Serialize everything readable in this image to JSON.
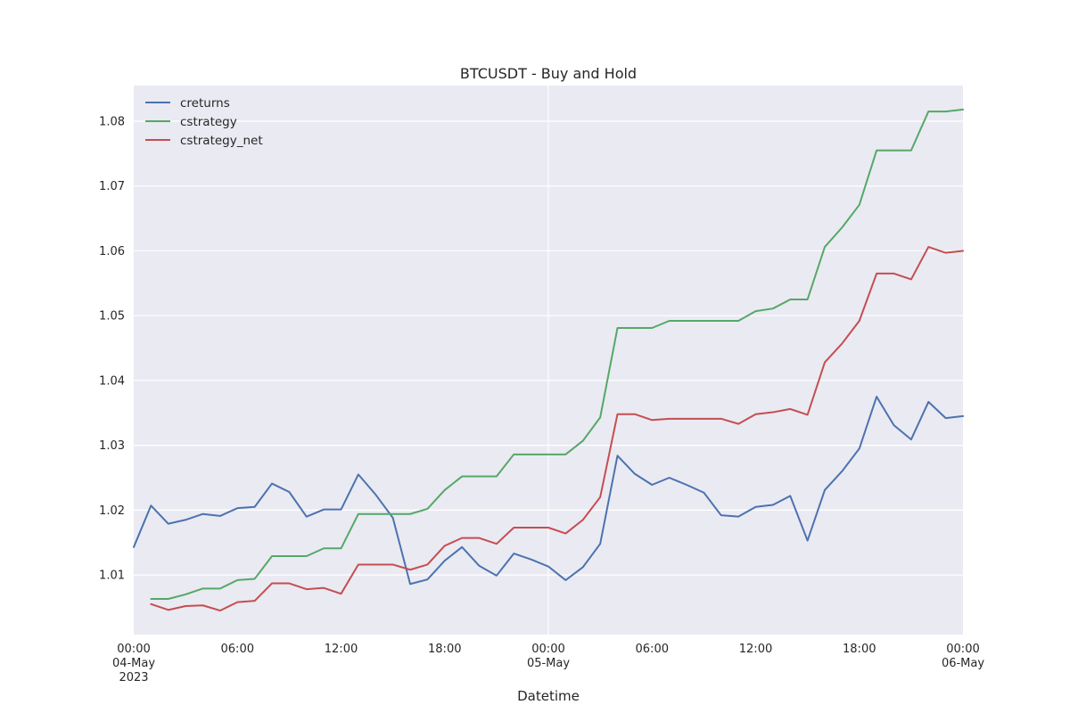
{
  "chart_data": {
    "type": "line",
    "title": "BTCUSDT - Buy and Hold",
    "xlabel": "Datetime",
    "ylabel": "",
    "x_start": "2023-05-04 00:00",
    "x_step": "1h",
    "xlim": [
      "2023-05-04 00:00",
      "2023-05-06 00:00"
    ],
    "ylim": [
      1.0008,
      1.0855
    ],
    "grid": true,
    "legend_position": "top-left",
    "colors": {
      "plot_bg": "#eaeaf2",
      "grid": "#ffffff"
    },
    "x_ticks": [
      {
        "hour": 0,
        "lines": [
          "00:00",
          "04-May",
          "2023"
        ]
      },
      {
        "hour": 6,
        "lines": [
          "06:00"
        ]
      },
      {
        "hour": 12,
        "lines": [
          "12:00"
        ]
      },
      {
        "hour": 18,
        "lines": [
          "18:00"
        ]
      },
      {
        "hour": 24,
        "lines": [
          "00:00",
          "05-May"
        ]
      },
      {
        "hour": 30,
        "lines": [
          "06:00"
        ]
      },
      {
        "hour": 36,
        "lines": [
          "12:00"
        ]
      },
      {
        "hour": 42,
        "lines": [
          "18:00"
        ]
      },
      {
        "hour": 48,
        "lines": [
          "00:00",
          "06-May"
        ]
      }
    ],
    "y_ticks": [
      "1.01",
      "1.02",
      "1.03",
      "1.04",
      "1.05",
      "1.06",
      "1.07",
      "1.08"
    ],
    "series": [
      {
        "name": "creturns",
        "color": "#4c72b0",
        "start_hour": 0,
        "values": [
          1.0143,
          1.0207,
          1.0179,
          1.0185,
          1.0194,
          1.0191,
          1.0203,
          1.0205,
          1.0241,
          1.0228,
          1.019,
          1.0201,
          1.0201,
          1.0255,
          1.0224,
          1.0188,
          1.0086,
          1.0093,
          1.0122,
          1.0143,
          1.0114,
          1.0099,
          1.0133,
          1.0124,
          1.0113,
          1.0092,
          1.0112,
          1.0148,
          1.0284,
          1.0256,
          1.0239,
          1.025,
          1.0239,
          1.0227,
          1.0192,
          1.019,
          1.0205,
          1.0208,
          1.0222,
          1.0153,
          1.0231,
          1.026,
          1.0295,
          1.0375,
          1.0331,
          1.0309,
          1.0367,
          1.0342,
          1.0345
        ]
      },
      {
        "name": "cstrategy",
        "color": "#55a868",
        "start_hour": 1,
        "values": [
          1.0063,
          1.0063,
          1.007,
          1.0079,
          1.0079,
          1.0092,
          1.0094,
          1.0129,
          1.0129,
          1.0129,
          1.0141,
          1.0141,
          1.0194,
          1.0194,
          1.0194,
          1.0194,
          1.0202,
          1.0231,
          1.0252,
          1.0252,
          1.0252,
          1.0286,
          1.0286,
          1.0286,
          1.0286,
          1.0307,
          1.0343,
          1.0481,
          1.0481,
          1.0481,
          1.0492,
          1.0492,
          1.0492,
          1.0492,
          1.0492,
          1.0507,
          1.0511,
          1.0525,
          1.0525,
          1.0606,
          1.0636,
          1.0671,
          1.0755,
          1.0755,
          1.0755,
          1.0815,
          1.0815,
          1.0818
        ]
      },
      {
        "name": "cstrategy_net",
        "color": "#c44e52",
        "start_hour": 1,
        "values": [
          1.0055,
          1.0046,
          1.0052,
          1.0053,
          1.0045,
          1.0058,
          1.006,
          1.0087,
          1.0087,
          1.0078,
          1.008,
          1.0071,
          1.0116,
          1.0116,
          1.0116,
          1.0108,
          1.0116,
          1.0145,
          1.0157,
          1.0157,
          1.0148,
          1.0173,
          1.0173,
          1.0173,
          1.0164,
          1.0185,
          1.022,
          1.0348,
          1.0348,
          1.0339,
          1.0341,
          1.0341,
          1.0341,
          1.0341,
          1.0333,
          1.0348,
          1.0351,
          1.0356,
          1.0347,
          1.0428,
          1.0457,
          1.0492,
          1.0565,
          1.0565,
          1.0556,
          1.0606,
          1.0597,
          1.06
        ]
      }
    ]
  }
}
